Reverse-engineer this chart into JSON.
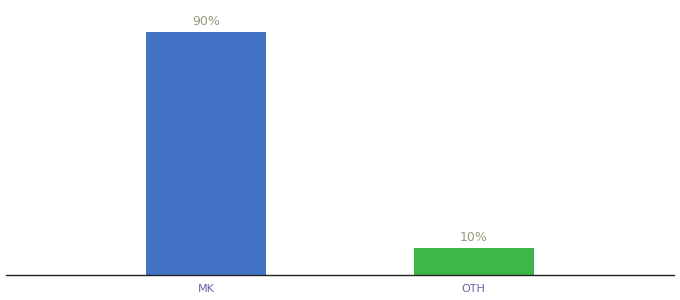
{
  "categories": [
    "MK",
    "OTH"
  ],
  "values": [
    90,
    10
  ],
  "bar_colors": [
    "#4472c4",
    "#3cb84a"
  ],
  "label_texts": [
    "90%",
    "10%"
  ],
  "background_color": "#ffffff",
  "ylim": [
    0,
    100
  ],
  "xlim": [
    0,
    1.0
  ],
  "x_positions": [
    0.3,
    0.7
  ],
  "bar_width": 0.18,
  "label_fontsize": 9,
  "tick_fontsize": 8,
  "label_color": "#999977",
  "tick_color": "#6666aa",
  "spine_color": "#222222",
  "spine_linewidth": 1.0
}
